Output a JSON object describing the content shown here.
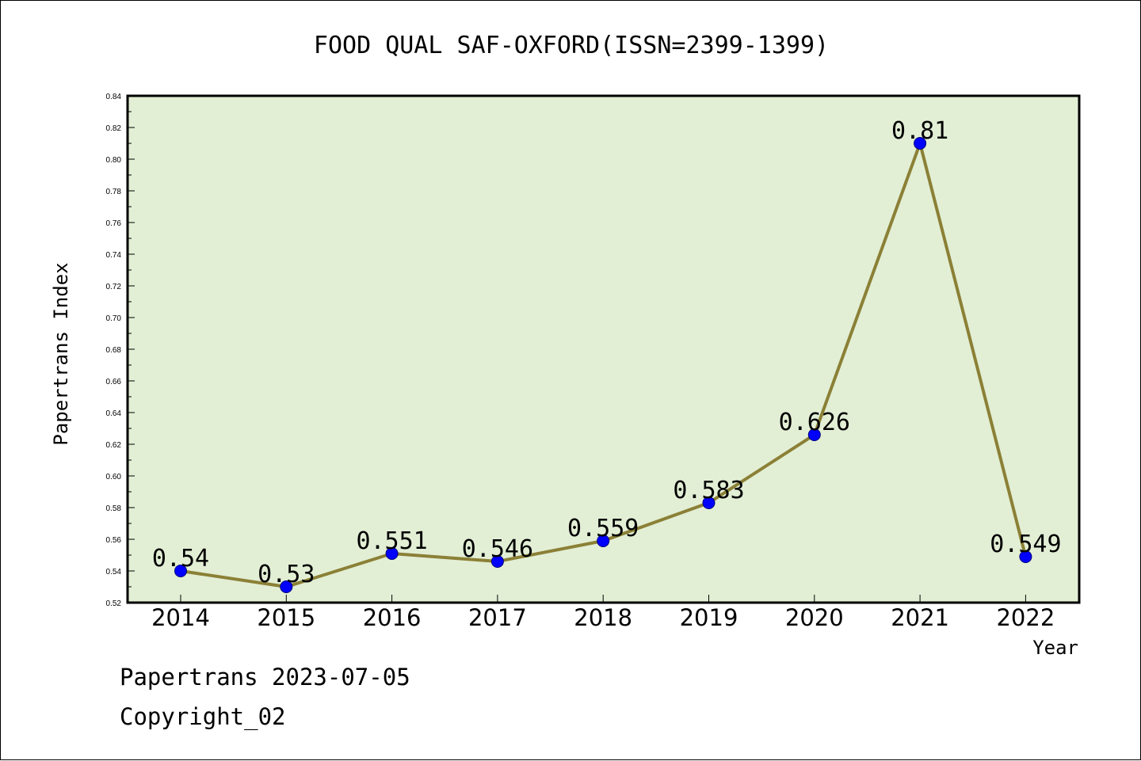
{
  "chart_data": {
    "type": "line",
    "title": "FOOD QUAL SAF-OXFORD(ISSN=2399-1399)",
    "xlabel": "Year",
    "ylabel": "Papertrans Index",
    "categories": [
      "2014",
      "2015",
      "2016",
      "2017",
      "2018",
      "2019",
      "2020",
      "2021",
      "2022"
    ],
    "series": [
      {
        "values": [
          0.54,
          0.53,
          0.551,
          0.546,
          0.559,
          0.583,
          0.626,
          0.81,
          0.549
        ],
        "labels": [
          "0.54",
          "0.53",
          "0.551",
          "0.546",
          "0.559",
          "0.583",
          "0.626",
          "0.81",
          "0.549"
        ]
      }
    ],
    "ylim": [
      0.52,
      0.84
    ],
    "yticks": [
      "0.52",
      "0.54",
      "0.56",
      "0.58",
      "0.60",
      "0.62",
      "0.64",
      "0.66",
      "0.68",
      "0.70",
      "0.72",
      "0.74",
      "0.76",
      "0.78",
      "0.80",
      "0.82",
      "0.84"
    ],
    "grid": false,
    "legend": "none",
    "colors": {
      "plot_background": "#e2efd5",
      "line": "#8b8036",
      "marker": "#0000ff",
      "axis": "#000000"
    }
  },
  "footer": {
    "line1": "Papertrans 2023-07-05",
    "line2": "Copyright_02"
  }
}
